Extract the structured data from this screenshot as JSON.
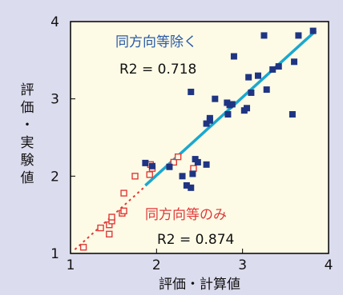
{
  "chart_data": {
    "type": "scatter",
    "xlabel": "評価・計算値",
    "ylabel": "評価・実験値",
    "xlim": [
      1,
      4
    ],
    "ylim": [
      1,
      4
    ],
    "xticks": [
      1,
      2,
      3,
      4
    ],
    "yticks": [
      1,
      2,
      3,
      4
    ],
    "grid": false,
    "colors": {
      "plot_bg": "#fdfbe6",
      "page_bg": "#dcdcef",
      "same_dir_excl": "#1f3583",
      "same_dir_only": "#e03a3a",
      "fit_blue": "#1aa8cf",
      "fit_red": "#e03a3a",
      "label_blue": "#2a5aa8",
      "label_red": "#e03a3a"
    },
    "series": [
      {
        "name": "同方向等除く",
        "marker": "filled-square",
        "r2": "R2 = 0.718",
        "points": [
          [
            1.87,
            2.17
          ],
          [
            1.95,
            2.13
          ],
          [
            2.15,
            2.12
          ],
          [
            2.3,
            2.0
          ],
          [
            2.35,
            1.88
          ],
          [
            2.4,
            1.85
          ],
          [
            2.42,
            2.03
          ],
          [
            2.45,
            2.22
          ],
          [
            2.48,
            2.18
          ],
          [
            2.58,
            2.15
          ],
          [
            2.4,
            3.09
          ],
          [
            2.58,
            2.68
          ],
          [
            2.62,
            2.72
          ],
          [
            2.62,
            2.75
          ],
          [
            2.68,
            3.0
          ],
          [
            2.82,
            2.95
          ],
          [
            2.83,
            2.8
          ],
          [
            2.85,
            2.92
          ],
          [
            2.88,
            2.93
          ],
          [
            2.9,
            3.55
          ],
          [
            3.02,
            2.85
          ],
          [
            3.05,
            2.88
          ],
          [
            3.07,
            3.28
          ],
          [
            3.1,
            3.08
          ],
          [
            3.18,
            3.3
          ],
          [
            3.25,
            3.82
          ],
          [
            3.28,
            3.12
          ],
          [
            3.35,
            3.38
          ],
          [
            3.42,
            3.42
          ],
          [
            3.58,
            2.8
          ],
          [
            3.6,
            3.48
          ],
          [
            3.65,
            3.82
          ],
          [
            3.82,
            3.88
          ]
        ],
        "fit": [
          [
            1.87,
            1.88
          ],
          [
            3.85,
            3.88
          ]
        ]
      },
      {
        "name": "同方向等のみ",
        "marker": "open-square",
        "r2": "R2 = 0.874",
        "points": [
          [
            1.15,
            1.08
          ],
          [
            1.35,
            1.33
          ],
          [
            1.45,
            1.25
          ],
          [
            1.45,
            1.37
          ],
          [
            1.48,
            1.42
          ],
          [
            1.48,
            1.47
          ],
          [
            1.6,
            1.52
          ],
          [
            1.62,
            1.78
          ],
          [
            1.62,
            1.55
          ],
          [
            1.75,
            2.0
          ],
          [
            1.92,
            2.02
          ],
          [
            1.93,
            2.15
          ],
          [
            1.95,
            2.1
          ],
          [
            2.2,
            2.18
          ],
          [
            2.25,
            2.25
          ],
          [
            2.43,
            2.1
          ]
        ],
        "fit": [
          [
            1.05,
            1.05
          ],
          [
            2.0,
            2.0
          ]
        ]
      }
    ]
  }
}
